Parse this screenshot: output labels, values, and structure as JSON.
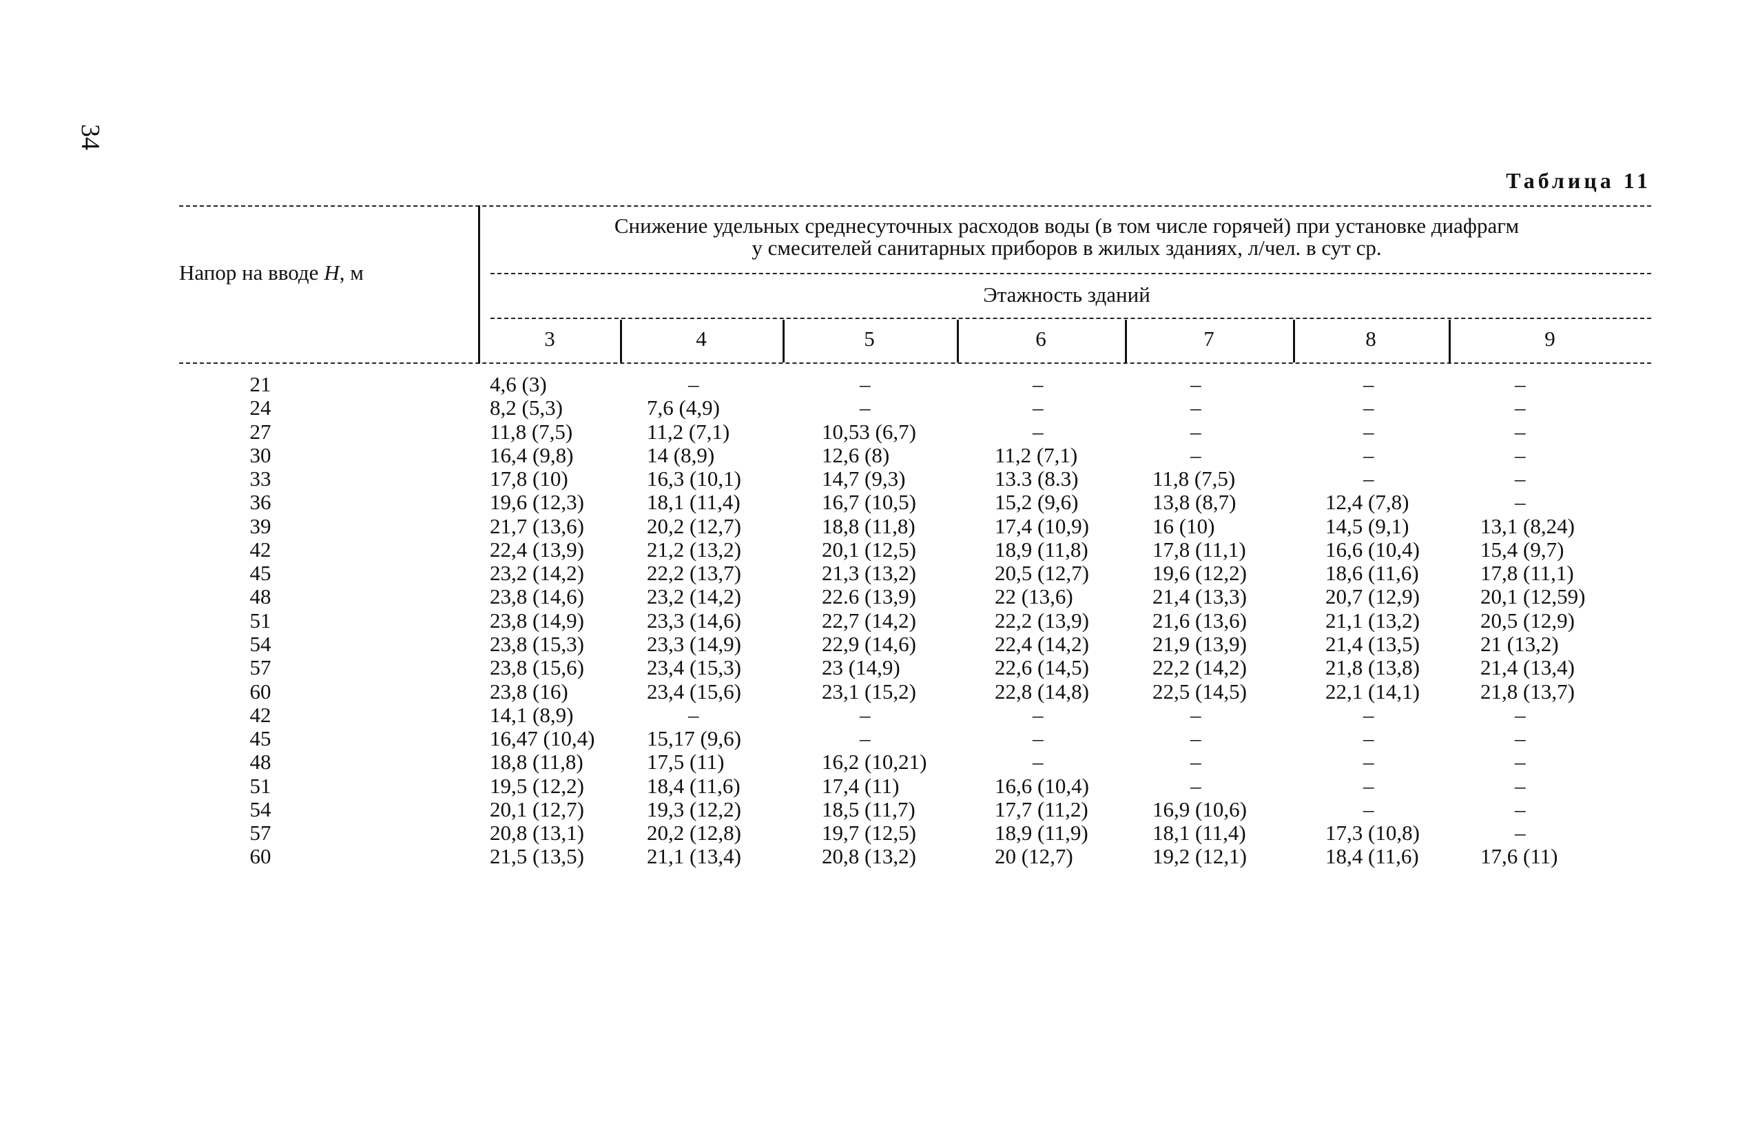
{
  "page_number": "34",
  "table_title": "Таблица 11",
  "header": {
    "h_column": {
      "pre": "Напор на вводе",
      "var": "H",
      "post": ", м"
    },
    "description": [
      "Снижение удельных среднесуточных расходов воды (в том числе горячей) при установке диафрагм",
      "у смесителей санитарных приборов в жилых зданиях, л/чел. в сут ср."
    ],
    "floors_label": "Этажность зданий",
    "floors": [
      "3",
      "4",
      "5",
      "6",
      "7",
      "8",
      "9"
    ]
  },
  "table": {
    "rows": [
      [
        "21",
        "4,6 (3)",
        "–",
        "–",
        "–",
        "–",
        "–",
        "–"
      ],
      [
        "24",
        "8,2 (5,3)",
        "7,6 (4,9)",
        "–",
        "–",
        "–",
        "–",
        "–"
      ],
      [
        "27",
        "11,8 (7,5)",
        "11,2 (7,1)",
        "10,53 (6,7)",
        "–",
        "–",
        "–",
        "–"
      ],
      [
        "30",
        "16,4 (9,8)",
        "14 (8,9)",
        "12,6 (8)",
        "11,2 (7,1)",
        "–",
        "–",
        "–"
      ],
      [
        "33",
        "17,8 (10)",
        "16,3 (10,1)",
        "14,7 (9,3)",
        "13.3 (8.3)",
        "11,8 (7,5)",
        "–",
        "–"
      ],
      [
        "36",
        "19,6 (12,3)",
        "18,1 (11,4)",
        "16,7 (10,5)",
        "15,2 (9,6)",
        "13,8 (8,7)",
        "12,4 (7,8)",
        "–"
      ],
      [
        "39",
        "21,7 (13,6)",
        "20,2 (12,7)",
        "18,8 (11,8)",
        "17,4 (10,9)",
        "16 (10)",
        "14,5 (9,1)",
        "13,1 (8,24)"
      ],
      [
        "42",
        "22,4 (13,9)",
        "21,2 (13,2)",
        "20,1 (12,5)",
        "18,9 (11,8)",
        "17,8 (11,1)",
        "16,6 (10,4)",
        "15,4 (9,7)"
      ],
      [
        "45",
        "23,2 (14,2)",
        "22,2 (13,7)",
        "21,3 (13,2)",
        "20,5 (12,7)",
        "19,6 (12,2)",
        "18,6 (11,6)",
        "17,8 (11,1)"
      ],
      [
        "48",
        "23,8 (14,6)",
        "23,2 (14,2)",
        "22.6 (13,9)",
        "22 (13,6)",
        "21,4 (13,3)",
        "20,7 (12,9)",
        "20,1 (12,59)"
      ],
      [
        "51",
        "23,8 (14,9)",
        "23,3 (14,6)",
        "22,7 (14,2)",
        "22,2 (13,9)",
        "21,6 (13,6)",
        "21,1 (13,2)",
        "20,5 (12,9)"
      ],
      [
        "54",
        "23,8 (15,3)",
        "23,3 (14,9)",
        "22,9 (14,6)",
        "22,4 (14,2)",
        "21,9 (13,9)",
        "21,4 (13,5)",
        "21 (13,2)"
      ],
      [
        "57",
        "23,8 (15,6)",
        "23,4 (15,3)",
        "23 (14,9)",
        "22,6 (14,5)",
        "22,2 (14,2)",
        "21,8 (13,8)",
        "21,4 (13,4)"
      ],
      [
        "60",
        "23,8 (16)",
        "23,4 (15,6)",
        "23,1 (15,2)",
        "22,8 (14,8)",
        "22,5 (14,5)",
        "22,1 (14,1)",
        "21,8 (13,7)"
      ],
      [
        "42",
        "14,1 (8,9)",
        "–",
        "–",
        "–",
        "–",
        "–",
        "–"
      ],
      [
        "45",
        "16,47 (10,4)",
        "15,17 (9,6)",
        "–",
        "–",
        "–",
        "–",
        "–"
      ],
      [
        "48",
        "18,8 (11,8)",
        "17,5 (11)",
        "16,2 (10,21)",
        "–",
        "–",
        "–",
        "–"
      ],
      [
        "51",
        "19,5 (12,2)",
        "18,4 (11,6)",
        "17,4 (11)",
        "16,6 (10,4)",
        "–",
        "–",
        "–"
      ],
      [
        "54",
        "20,1 (12,7)",
        "19,3 (12,2)",
        "18,5 (11,7)",
        "17,7 (11,2)",
        "16,9 (10,6)",
        "–",
        "–"
      ],
      [
        "57",
        "20,8 (13,1)",
        "20,2 (12,8)",
        "19,7 (12,5)",
        "18,9 (11,9)",
        "18,1 (11,4)",
        "17,3 (10,8)",
        "–"
      ],
      [
        "60",
        "21,5 (13,5)",
        "21,1 (13,4)",
        "20,8 (13,2)",
        "20 (12,7)",
        "19,2 (12,1)",
        "18,4 (11,6)",
        "17,6 (11)"
      ]
    ]
  }
}
